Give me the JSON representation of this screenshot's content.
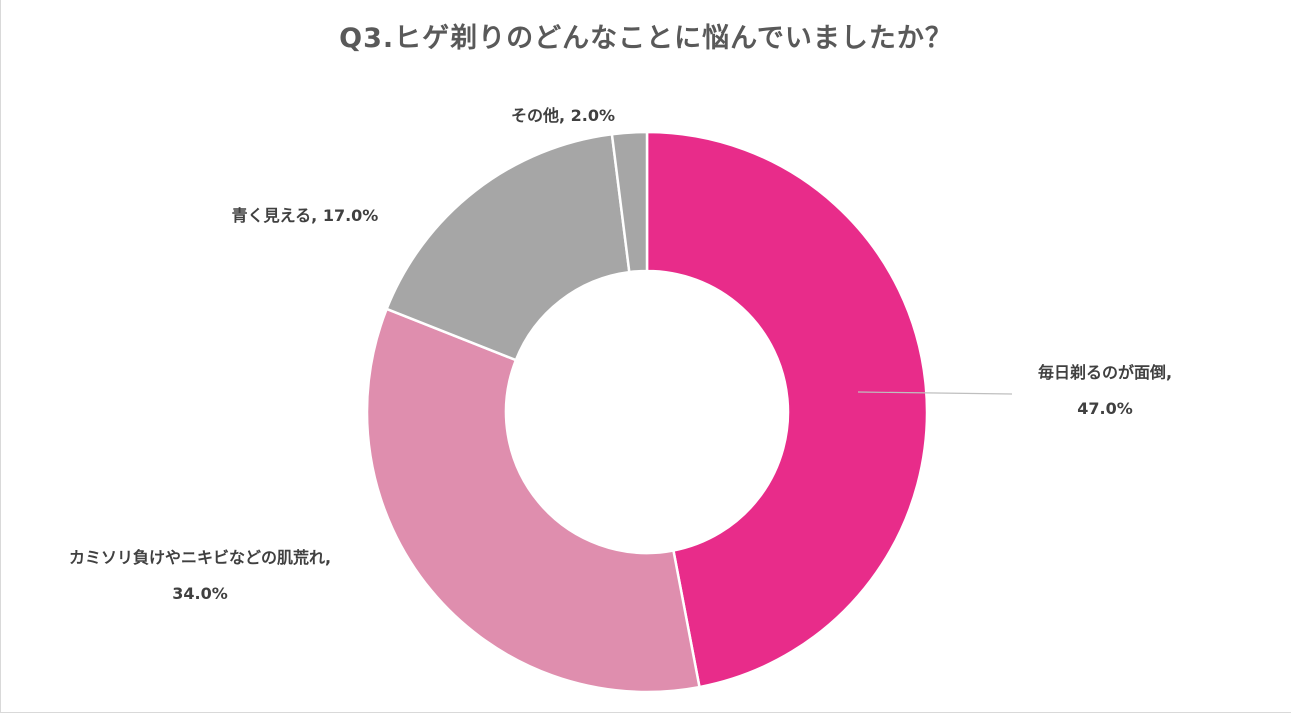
{
  "chart_data": {
    "type": "pie",
    "title": "Q3.ヒゲ剃りのどんなことに悩んでいましたか？",
    "categories": [
      "毎日剃るのが面倒",
      "カミソリ負けやニキビなどの肌荒れ",
      "青く見える",
      "その他"
    ],
    "values": [
      47.0,
      34.0,
      17.0,
      2.0
    ],
    "unit": "%",
    "colors": [
      "#e82c8a",
      "#df8eae",
      "#a6a6a6",
      "#a6a6a6"
    ],
    "data_labels": [
      {
        "name": "毎日剃るのが面倒,",
        "value": "47.0%"
      },
      {
        "name": "カミソリ負けやニキビなどの肌荒れ,",
        "value": "34.0%"
      },
      {
        "name": "青く見える,",
        "value": "17.0%"
      },
      {
        "name": "その他,",
        "value": "2.0%"
      }
    ],
    "legend": "none"
  }
}
